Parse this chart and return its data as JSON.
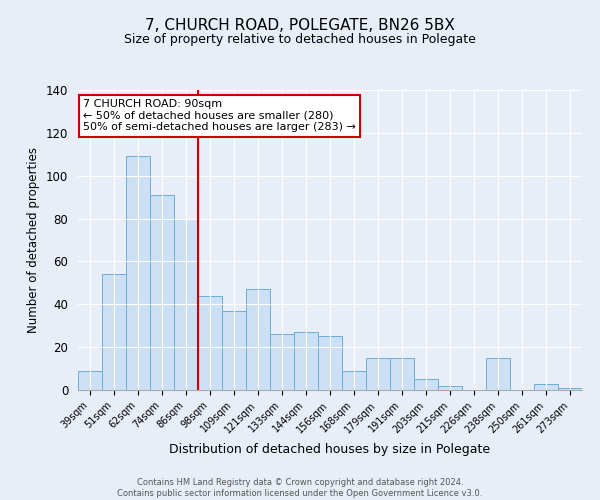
{
  "title": "7, CHURCH ROAD, POLEGATE, BN26 5BX",
  "subtitle": "Size of property relative to detached houses in Polegate",
  "xlabel": "Distribution of detached houses by size in Polegate",
  "ylabel": "Number of detached properties",
  "categories": [
    "39sqm",
    "51sqm",
    "62sqm",
    "74sqm",
    "86sqm",
    "98sqm",
    "109sqm",
    "121sqm",
    "133sqm",
    "144sqm",
    "156sqm",
    "168sqm",
    "179sqm",
    "191sqm",
    "203sqm",
    "215sqm",
    "226sqm",
    "238sqm",
    "250sqm",
    "261sqm",
    "273sqm"
  ],
  "values": [
    9,
    54,
    109,
    91,
    80,
    44,
    37,
    47,
    26,
    27,
    25,
    9,
    15,
    15,
    5,
    2,
    0,
    15,
    0,
    3,
    1
  ],
  "bar_color": "#cce0f5",
  "bar_edge_color": "#6aaed6",
  "ylim": [
    0,
    140
  ],
  "yticks": [
    0,
    20,
    40,
    60,
    80,
    100,
    120,
    140
  ],
  "vline_x": 4.5,
  "vline_color": "#cc0000",
  "annotation_title": "7 CHURCH ROAD: 90sqm",
  "annotation_line1": "← 50% of detached houses are smaller (280)",
  "annotation_line2": "50% of semi-detached houses are larger (283) →",
  "annotation_box_color": "#cc0000",
  "footer1": "Contains HM Land Registry data © Crown copyright and database right 2024.",
  "footer2": "Contains public sector information licensed under the Open Government Licence v3.0.",
  "background_color": "#e8eef8",
  "title_fontsize": 11,
  "subtitle_fontsize": 9
}
